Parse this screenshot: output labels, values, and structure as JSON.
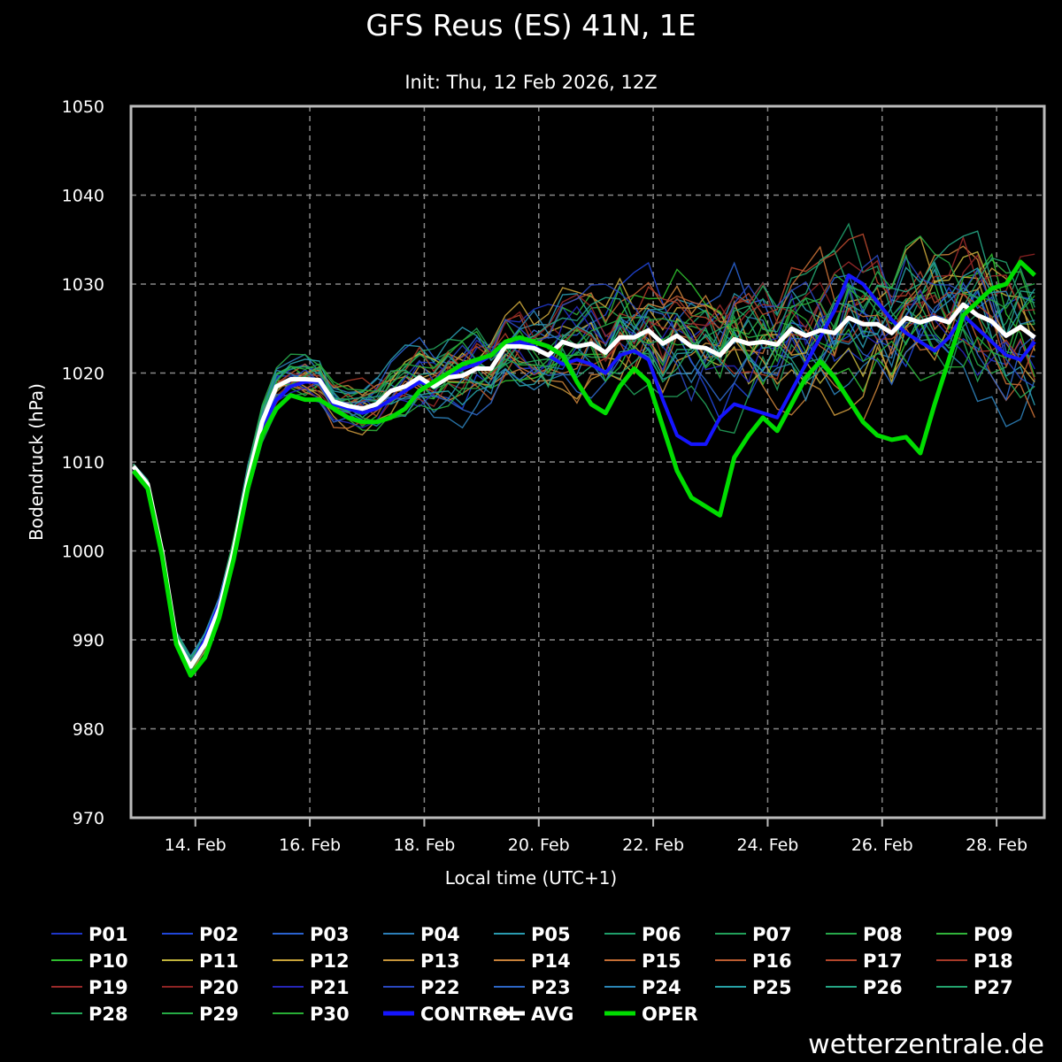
{
  "chart_data": {
    "type": "line",
    "title": "GFS Reus (ES) 41N, 1E",
    "subtitle": "Init: Thu, 12 Feb 2026, 12Z",
    "xlabel": "Local time (UTC+1)",
    "ylabel": "Bodendruck (hPa)",
    "ylim": [
      970,
      1050
    ],
    "yticks": [
      970,
      980,
      990,
      1000,
      1010,
      1020,
      1030,
      1040,
      1050
    ],
    "xlim": [
      "2026-02-12T21:00",
      "2026-02-28T20:00"
    ],
    "xticks": [
      {
        "date": "2026-02-14",
        "label": "14. Feb"
      },
      {
        "date": "2026-02-16",
        "label": "16. Feb"
      },
      {
        "date": "2026-02-18",
        "label": "18. Feb"
      },
      {
        "date": "2026-02-20",
        "label": "20. Feb"
      },
      {
        "date": "2026-02-22",
        "label": "22. Feb"
      },
      {
        "date": "2026-02-24",
        "label": "24. Feb"
      },
      {
        "date": "2026-02-26",
        "label": "26. Feb"
      },
      {
        "date": "2026-02-28",
        "label": "28. Feb"
      }
    ],
    "grid": true,
    "legend_position": "bottom",
    "watermark": "wetterzentrale.de",
    "colors": {
      "background": "#000000",
      "plot_border": "#bbbbbb",
      "grid": "#888888",
      "control": "#0000ff",
      "avg": "#ffffff",
      "oper": "#00dd00"
    },
    "main_series": [
      {
        "name": "CONTROL",
        "color": "#1515ff",
        "points": [
          [
            "2026-02-12T22:00",
            1009
          ],
          [
            "2026-02-13T04:00",
            1007
          ],
          [
            "2026-02-13T10:00",
            1000
          ],
          [
            "2026-02-13T16:00",
            990
          ],
          [
            "2026-02-13T22:00",
            987
          ],
          [
            "2026-02-14T04:00",
            990
          ],
          [
            "2026-02-14T10:00",
            994
          ],
          [
            "2026-02-14T16:00",
            1000
          ],
          [
            "2026-02-14T22:00",
            1008
          ],
          [
            "2026-02-15T04:00",
            1014
          ],
          [
            "2026-02-15T10:00",
            1017
          ],
          [
            "2026-02-15T16:00",
            1018.5
          ],
          [
            "2026-02-15T22:00",
            1019
          ],
          [
            "2026-02-16T04:00",
            1019
          ],
          [
            "2026-02-16T10:00",
            1016.5
          ],
          [
            "2026-02-16T16:00",
            1016
          ],
          [
            "2026-02-16T22:00",
            1015.5
          ],
          [
            "2026-02-17T04:00",
            1016
          ],
          [
            "2026-02-17T10:00",
            1017
          ],
          [
            "2026-02-17T16:00",
            1018
          ],
          [
            "2026-02-17T22:00",
            1019
          ],
          [
            "2026-02-18T04:00",
            1018.5
          ],
          [
            "2026-02-18T10:00",
            1019.5
          ],
          [
            "2026-02-18T16:00",
            1020.5
          ],
          [
            "2026-02-18T22:00",
            1021
          ],
          [
            "2026-02-19T04:00",
            1022
          ],
          [
            "2026-02-19T10:00",
            1023
          ],
          [
            "2026-02-19T16:00",
            1023.5
          ],
          [
            "2026-02-19T22:00",
            1023
          ],
          [
            "2026-02-20T04:00",
            1022
          ],
          [
            "2026-02-20T10:00",
            1021
          ],
          [
            "2026-02-20T16:00",
            1021.5
          ],
          [
            "2026-02-20T22:00",
            1021
          ],
          [
            "2026-02-21T04:00",
            1020
          ],
          [
            "2026-02-21T10:00",
            1022
          ],
          [
            "2026-02-21T16:00",
            1022.5
          ],
          [
            "2026-02-21T22:00",
            1021.5
          ],
          [
            "2026-02-22T04:00",
            1017
          ],
          [
            "2026-02-22T10:00",
            1013
          ],
          [
            "2026-02-22T16:00",
            1012
          ],
          [
            "2026-02-22T22:00",
            1012
          ],
          [
            "2026-02-23T04:00",
            1015
          ],
          [
            "2026-02-23T10:00",
            1016.5
          ],
          [
            "2026-02-23T16:00",
            1016
          ],
          [
            "2026-02-23T22:00",
            1015.5
          ],
          [
            "2026-02-24T04:00",
            1015
          ],
          [
            "2026-02-24T10:00",
            1018
          ],
          [
            "2026-02-24T16:00",
            1021
          ],
          [
            "2026-02-24T22:00",
            1024
          ],
          [
            "2026-02-25T04:00",
            1027
          ],
          [
            "2026-02-25T10:00",
            1031
          ],
          [
            "2026-02-25T16:00",
            1030
          ],
          [
            "2026-02-25T22:00",
            1028
          ],
          [
            "2026-02-26T04:00",
            1026
          ],
          [
            "2026-02-26T10:00",
            1024.5
          ],
          [
            "2026-02-26T16:00",
            1023.5
          ],
          [
            "2026-02-26T22:00",
            1022.5
          ],
          [
            "2026-02-27T04:00",
            1024
          ],
          [
            "2026-02-27T10:00",
            1026.5
          ],
          [
            "2026-02-27T16:00",
            1025
          ],
          [
            "2026-02-27T22:00",
            1023.5
          ],
          [
            "2026-02-28T04:00",
            1022
          ],
          [
            "2026-02-28T10:00",
            1021.5
          ],
          [
            "2026-02-28T16:00",
            1023.5
          ]
        ]
      },
      {
        "name": "AVG",
        "color": "#ffffff",
        "points": [
          [
            "2026-02-12T22:00",
            1009.5
          ],
          [
            "2026-02-13T04:00",
            1007.5
          ],
          [
            "2026-02-13T10:00",
            1000
          ],
          [
            "2026-02-13T16:00",
            990
          ],
          [
            "2026-02-13T22:00",
            987
          ],
          [
            "2026-02-14T04:00",
            989.5
          ],
          [
            "2026-02-14T10:00",
            993.5
          ],
          [
            "2026-02-14T16:00",
            1000
          ],
          [
            "2026-02-14T22:00",
            1008
          ],
          [
            "2026-02-15T04:00",
            1014.5
          ],
          [
            "2026-02-15T10:00",
            1018.5
          ],
          [
            "2026-02-15T16:00",
            1019.3
          ],
          [
            "2026-02-15T22:00",
            1019.3
          ],
          [
            "2026-02-16T04:00",
            1019.2
          ],
          [
            "2026-02-16T10:00",
            1016.8
          ],
          [
            "2026-02-16T16:00",
            1016.3
          ],
          [
            "2026-02-16T22:00",
            1016
          ],
          [
            "2026-02-17T04:00",
            1016.5
          ],
          [
            "2026-02-17T10:00",
            1018
          ],
          [
            "2026-02-17T16:00",
            1018.5
          ],
          [
            "2026-02-17T22:00",
            1019.5
          ],
          [
            "2026-02-18T04:00",
            1018.5
          ],
          [
            "2026-02-18T10:00",
            1019.5
          ],
          [
            "2026-02-18T16:00",
            1019.7
          ],
          [
            "2026-02-18T22:00",
            1020.5
          ],
          [
            "2026-02-19T04:00",
            1020.5
          ],
          [
            "2026-02-19T10:00",
            1023
          ],
          [
            "2026-02-19T16:00",
            1023
          ],
          [
            "2026-02-19T22:00",
            1022.8
          ],
          [
            "2026-02-20T04:00",
            1022
          ],
          [
            "2026-02-20T10:00",
            1023.5
          ],
          [
            "2026-02-20T16:00",
            1023
          ],
          [
            "2026-02-20T22:00",
            1023.3
          ],
          [
            "2026-02-21T04:00",
            1022.3
          ],
          [
            "2026-02-21T10:00",
            1024
          ],
          [
            "2026-02-21T16:00",
            1024
          ],
          [
            "2026-02-21T22:00",
            1024.8
          ],
          [
            "2026-02-22T04:00",
            1023.3
          ],
          [
            "2026-02-22T10:00",
            1024.2
          ],
          [
            "2026-02-22T16:00",
            1023
          ],
          [
            "2026-02-22T22:00",
            1022.8
          ],
          [
            "2026-02-23T04:00",
            1022
          ],
          [
            "2026-02-23T10:00",
            1023.8
          ],
          [
            "2026-02-23T16:00",
            1023.3
          ],
          [
            "2026-02-23T22:00",
            1023.5
          ],
          [
            "2026-02-24T04:00",
            1023.2
          ],
          [
            "2026-02-24T10:00",
            1025
          ],
          [
            "2026-02-24T16:00",
            1024.2
          ],
          [
            "2026-02-24T22:00",
            1024.8
          ],
          [
            "2026-02-25T04:00",
            1024.5
          ],
          [
            "2026-02-25T10:00",
            1026.2
          ],
          [
            "2026-02-25T16:00",
            1025.5
          ],
          [
            "2026-02-25T22:00",
            1025.5
          ],
          [
            "2026-02-26T04:00",
            1024.5
          ],
          [
            "2026-02-26T10:00",
            1026.2
          ],
          [
            "2026-02-26T16:00",
            1025.7
          ],
          [
            "2026-02-26T22:00",
            1026.2
          ],
          [
            "2026-02-27T04:00",
            1025.7
          ],
          [
            "2026-02-27T10:00",
            1027.7
          ],
          [
            "2026-02-27T16:00",
            1026.5
          ],
          [
            "2026-02-27T22:00",
            1025.8
          ],
          [
            "2026-02-28T04:00",
            1024.2
          ],
          [
            "2026-02-28T10:00",
            1025.2
          ],
          [
            "2026-02-28T16:00",
            1024
          ]
        ]
      },
      {
        "name": "OPER",
        "color": "#00dd00",
        "points": [
          [
            "2026-02-12T22:00",
            1009
          ],
          [
            "2026-02-13T04:00",
            1007
          ],
          [
            "2026-02-13T10:00",
            999.5
          ],
          [
            "2026-02-13T16:00",
            989.5
          ],
          [
            "2026-02-13T22:00",
            986
          ],
          [
            "2026-02-14T04:00",
            988
          ],
          [
            "2026-02-14T10:00",
            992.5
          ],
          [
            "2026-02-14T16:00",
            999
          ],
          [
            "2026-02-14T22:00",
            1007
          ],
          [
            "2026-02-15T04:00",
            1013
          ],
          [
            "2026-02-15T10:00",
            1016
          ],
          [
            "2026-02-15T16:00",
            1017.5
          ],
          [
            "2026-02-15T22:00",
            1017
          ],
          [
            "2026-02-16T04:00",
            1017
          ],
          [
            "2026-02-16T10:00",
            1016
          ],
          [
            "2026-02-16T16:00",
            1015
          ],
          [
            "2026-02-16T22:00",
            1014.5
          ],
          [
            "2026-02-17T04:00",
            1014.5
          ],
          [
            "2026-02-17T10:00",
            1015
          ],
          [
            "2026-02-17T16:00",
            1016
          ],
          [
            "2026-02-17T22:00",
            1018
          ],
          [
            "2026-02-18T04:00",
            1019
          ],
          [
            "2026-02-18T10:00",
            1020
          ],
          [
            "2026-02-18T16:00",
            1021
          ],
          [
            "2026-02-18T22:00",
            1021.5
          ],
          [
            "2026-02-19T04:00",
            1022
          ],
          [
            "2026-02-19T10:00",
            1023.5
          ],
          [
            "2026-02-19T16:00",
            1024
          ],
          [
            "2026-02-19T22:00",
            1023.5
          ],
          [
            "2026-02-20T04:00",
            1023
          ],
          [
            "2026-02-20T10:00",
            1022
          ],
          [
            "2026-02-20T16:00",
            1019
          ],
          [
            "2026-02-20T22:00",
            1016.5
          ],
          [
            "2026-02-21T04:00",
            1015.5
          ],
          [
            "2026-02-21T10:00",
            1018.5
          ],
          [
            "2026-02-21T16:00",
            1020.5
          ],
          [
            "2026-02-21T22:00",
            1019
          ],
          [
            "2026-02-22T04:00",
            1014
          ],
          [
            "2026-02-22T10:00",
            1009
          ],
          [
            "2026-02-22T16:00",
            1006
          ],
          [
            "2026-02-22T22:00",
            1005
          ],
          [
            "2026-02-23T04:00",
            1004
          ],
          [
            "2026-02-23T10:00",
            1010.5
          ],
          [
            "2026-02-23T16:00",
            1013
          ],
          [
            "2026-02-23T22:00",
            1015
          ],
          [
            "2026-02-24T04:00",
            1013.5
          ],
          [
            "2026-02-24T10:00",
            1016.5
          ],
          [
            "2026-02-24T16:00",
            1019.5
          ],
          [
            "2026-02-24T22:00",
            1021.3
          ],
          [
            "2026-02-25T04:00",
            1019.5
          ],
          [
            "2026-02-25T10:00",
            1017
          ],
          [
            "2026-02-25T16:00",
            1014.5
          ],
          [
            "2026-02-25T22:00",
            1013
          ],
          [
            "2026-02-26T04:00",
            1012.5
          ],
          [
            "2026-02-26T10:00",
            1012.8
          ],
          [
            "2026-02-26T16:00",
            1011
          ],
          [
            "2026-02-26T22:00",
            1016.5
          ],
          [
            "2026-02-27T04:00",
            1021.5
          ],
          [
            "2026-02-27T10:00",
            1026.5
          ],
          [
            "2026-02-27T16:00",
            1028
          ],
          [
            "2026-02-27T22:00",
            1029.5
          ],
          [
            "2026-02-28T04:00",
            1030
          ],
          [
            "2026-02-28T10:00",
            1032.5
          ],
          [
            "2026-02-28T16:00",
            1031
          ]
        ]
      }
    ],
    "member_series": [
      {
        "name": "P01",
        "color": "#1f36c8"
      },
      {
        "name": "P02",
        "color": "#2046d9"
      },
      {
        "name": "P03",
        "color": "#2a62cf"
      },
      {
        "name": "P04",
        "color": "#2c7fb8"
      },
      {
        "name": "P05",
        "color": "#2a9bb0"
      },
      {
        "name": "P06",
        "color": "#1f9e6a"
      },
      {
        "name": "P07",
        "color": "#22a05a"
      },
      {
        "name": "P08",
        "color": "#27a84a"
      },
      {
        "name": "P09",
        "color": "#31b33a"
      },
      {
        "name": "P10",
        "color": "#2fbf2f"
      },
      {
        "name": "P11",
        "color": "#c2b53c"
      },
      {
        "name": "P12",
        "color": "#c9a43a"
      },
      {
        "name": "P13",
        "color": "#c8963b"
      },
      {
        "name": "P14",
        "color": "#c9823a"
      },
      {
        "name": "P15",
        "color": "#c66f35"
      },
      {
        "name": "P16",
        "color": "#bd5d31"
      },
      {
        "name": "P17",
        "color": "#b5472c"
      },
      {
        "name": "P18",
        "color": "#a83a28"
      },
      {
        "name": "P19",
        "color": "#9a2a2a"
      },
      {
        "name": "P20",
        "color": "#8e2424"
      },
      {
        "name": "P21",
        "color": "#2626b8"
      },
      {
        "name": "P22",
        "color": "#2a48c0"
      },
      {
        "name": "P23",
        "color": "#2d66c6"
      },
      {
        "name": "P24",
        "color": "#2b86b6"
      },
      {
        "name": "P25",
        "color": "#27a2a6"
      },
      {
        "name": "P26",
        "color": "#26a685"
      },
      {
        "name": "P27",
        "color": "#24a46e"
      },
      {
        "name": "P28",
        "color": "#24a85a"
      },
      {
        "name": "P29",
        "color": "#26ab45"
      },
      {
        "name": "P30",
        "color": "#28ae35"
      }
    ],
    "legend": [
      "P01",
      "P02",
      "P03",
      "P04",
      "P05",
      "P06",
      "P07",
      "P08",
      "P09",
      "P10",
      "P11",
      "P12",
      "P13",
      "P14",
      "P15",
      "P16",
      "P17",
      "P18",
      "P19",
      "P20",
      "P21",
      "P22",
      "P23",
      "P24",
      "P25",
      "P26",
      "P27",
      "P28",
      "P29",
      "P30",
      "CONTROL",
      "AVG",
      "OPER"
    ]
  }
}
